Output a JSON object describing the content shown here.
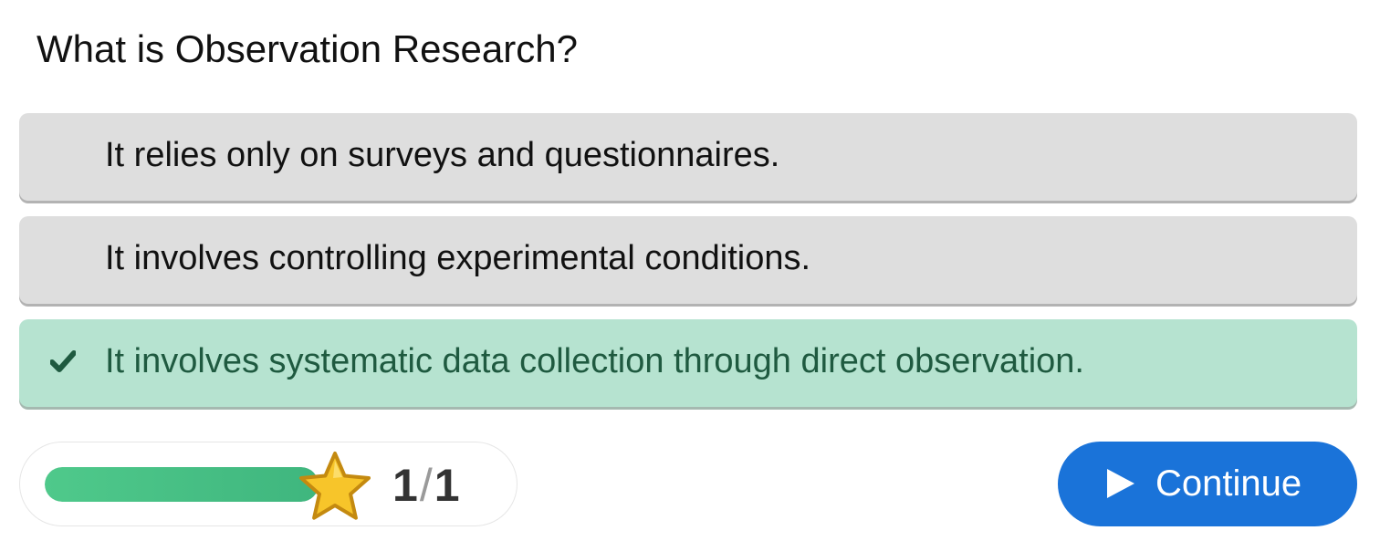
{
  "question": {
    "text": "What is Observation Research?"
  },
  "answers": [
    {
      "text": "It relies only on surveys and questionnaires.",
      "state": "neutral"
    },
    {
      "text": "It involves controlling experimental conditions.",
      "state": "neutral"
    },
    {
      "text": "It involves systematic data collection through direct observation.",
      "state": "correct",
      "icon": "check-icon"
    }
  ],
  "progress": {
    "fill_fraction": 1.0,
    "icon": "star-icon",
    "score": "1",
    "separator": "/",
    "total": "1"
  },
  "continue_button": {
    "label": "Continue",
    "icon": "play-icon"
  },
  "colors": {
    "answer_neutral": "#dedede",
    "answer_correct": "#b6e3d0",
    "correct_text": "#1f5a40",
    "progress_green": "#4fc98b",
    "button_blue": "#1a73d9",
    "star_yellow": "#f7c52a"
  }
}
